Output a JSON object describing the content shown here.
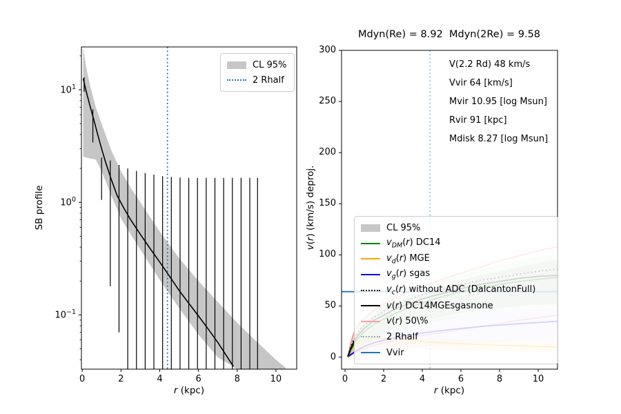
{
  "figure": {
    "background": "#ffffff"
  },
  "left_panel": {
    "ylabel": "SB profile",
    "xlabel": {
      "r": "r",
      "rest": " (kpc)"
    },
    "xticks": [
      0,
      2,
      4,
      6,
      8,
      10
    ],
    "ytick_labels": [
      {
        "base": "10",
        "exp": "1"
      },
      {
        "base": "10",
        "exp": "0"
      },
      {
        "base": "10",
        "exp": "−1"
      }
    ],
    "legend": {
      "entries": [
        {
          "kind": "patch",
          "color": "#c7c7c7",
          "label": "CL 95%",
          "rest": "CL 95%"
        },
        {
          "kind": "dotted",
          "color": "#1f77b4",
          "label": "2 Rhalf",
          "rest": "2 Rhalf"
        }
      ]
    }
  },
  "right_panel": {
    "title": "Mdyn(Re) = 8.92  Mdyn(2Re) = 9.58",
    "annotations": [
      "V(2.2 Rd) 48 km/s",
      "Vvir 64 [km/s]",
      "Mvir 10.95 [log Msun]",
      "Rvir 91 [kpc]",
      "Mdisk 8.27 [log Msun]"
    ],
    "ylabel": {
      "v": "v",
      "open": "(",
      "r": "r",
      "rest": ") (km/s) deproj."
    },
    "xlabel": {
      "r": "r",
      "rest": " (kpc)"
    },
    "xticks": [
      0,
      2,
      4,
      6,
      8,
      10
    ],
    "yticks": [
      0,
      50,
      100,
      150,
      200,
      250,
      300
    ],
    "legend": {
      "entries": [
        {
          "kind": "patch",
          "color": "#c7c7c7",
          "label": "CL 95%",
          "rest": "CL 95%"
        },
        {
          "kind": "line",
          "color": "#008000",
          "label": "v_DM(r) DC14",
          "v": "v",
          "sub": "DM",
          "r": "r",
          "rest": " DC14"
        },
        {
          "kind": "line",
          "color": "#ffa500",
          "label": "v_d(r) MGE",
          "v": "v",
          "sub": "d",
          "r": "r",
          "rest": " MGE"
        },
        {
          "kind": "line",
          "color": "#0000ff",
          "label": "v_g(r) sgas",
          "v": "v",
          "sub": "g",
          "r": "r",
          "rest": " sgas"
        },
        {
          "kind": "dotted",
          "color": "#000000",
          "label": "v_c(r) without ADC (DalcantonFull)",
          "v": "v",
          "sub": "c",
          "r": "r",
          "rest": " without ADC (DalcantonFull)"
        },
        {
          "kind": "line",
          "color": "#000000",
          "label": "v(r) DC14MGEsgasnone",
          "v": "v",
          "r": "r",
          "rest": " DC14MGEsgasnone"
        },
        {
          "kind": "line",
          "color": "#ff9f9f",
          "label": "v(r) 50\\%",
          "v": "v",
          "r": "r",
          "rest": " 50\\%"
        },
        {
          "kind": "dotted",
          "color": "#1f77b4",
          "alpha": 0.55,
          "label": "2 Rhalf",
          "rest": "2 Rhalf"
        },
        {
          "kind": "line",
          "color": "#1f77b4",
          "label": "Vvir",
          "rest": "Vvir"
        }
      ]
    }
  },
  "chart_data": [
    {
      "type": "line",
      "title": "",
      "xlabel": "r (kpc)",
      "ylabel": "SB profile",
      "yscale": "log",
      "xlim": [
        -0.04,
        11.07
      ],
      "ylim": [
        0.033,
        24
      ],
      "xticks": [
        0,
        2,
        4,
        6,
        8,
        10
      ],
      "yticks": [
        10,
        1,
        0.1
      ],
      "grid": false,
      "legend_position": "upper right",
      "series": [
        {
          "name": "SB profile median",
          "color": "#000000",
          "style": "solid",
          "x": [
            0.05,
            0.2,
            0.4,
            0.6,
            0.8,
            1.0,
            1.2,
            1.5,
            1.8,
            2.1,
            2.5,
            3.0,
            3.5,
            4.0,
            4.4,
            5.0,
            5.5,
            6.0,
            6.5,
            7.0,
            7.5,
            7.8
          ],
          "y": [
            12.6,
            9.8,
            7.2,
            5.4,
            4.0,
            3.0,
            2.3,
            1.6,
            1.15,
            0.92,
            0.7,
            0.52,
            0.39,
            0.295,
            0.235,
            0.165,
            0.127,
            0.098,
            0.075,
            0.057,
            0.042,
            0.035
          ]
        }
      ],
      "band": {
        "name": "CL 95%",
        "color": "#808080",
        "alpha": 0.45,
        "x": [
          0.05,
          0.2,
          0.4,
          0.7,
          1.0,
          1.5,
          2.0,
          2.5,
          3.0,
          4.0,
          5.0,
          6.0,
          7.0,
          8.0,
          9.0,
          10.0,
          10.5
        ],
        "upper": [
          24,
          16,
          11,
          7.0,
          5.0,
          2.9,
          1.9,
          1.35,
          1.0,
          0.55,
          0.32,
          0.2,
          0.13,
          0.085,
          0.058,
          0.04,
          0.034
        ],
        "lower": [
          2.55,
          2.5,
          2.45,
          2.4,
          1.9,
          1.15,
          0.72,
          0.52,
          0.38,
          0.205,
          0.115,
          0.067,
          0.042,
          0.033,
          0.033,
          0.033,
          0.033
        ]
      },
      "errorbars": {
        "color": "#000000",
        "r": [
          0.1,
          0.55,
          1.0,
          1.45,
          1.9,
          2.35,
          2.8,
          3.25,
          3.7,
          4.15,
          4.6,
          5.05,
          5.5,
          5.95,
          6.4,
          6.85,
          7.3,
          7.75,
          8.2,
          8.65,
          9.05
        ],
        "hi": [
          12.9,
          6.7,
          2.5,
          2.35,
          2.15,
          2.0,
          1.9,
          1.82,
          1.76,
          1.71,
          1.68,
          1.66,
          1.65,
          1.65,
          1.65,
          1.65,
          1.65,
          1.65,
          1.65,
          1.65,
          1.65
        ],
        "lo": [
          9.6,
          3.4,
          1.05,
          0.18,
          0.07,
          0.03,
          0.03,
          0.03,
          0.03,
          0.03,
          0.03,
          0.03,
          0.03,
          0.03,
          0.03,
          0.03,
          0.03,
          0.03,
          0.03,
          0.03,
          0.03
        ]
      },
      "vline": {
        "name": "2 Rhalf",
        "x": 4.4,
        "color": "#1f77b4",
        "style": "dotted",
        "alpha": 1.0
      }
    },
    {
      "type": "line",
      "title": "Mdyn(Re) = 8.92  Mdyn(2Re) = 9.58",
      "xlabel": "r (kpc)",
      "ylabel": "v(r) (km/s) deproj.",
      "xlim": [
        -0.18,
        11.0
      ],
      "ylim": [
        -11.8,
        300
      ],
      "xticks": [
        0,
        2,
        4,
        6,
        8,
        10
      ],
      "yticks": [
        0,
        50,
        100,
        150,
        200,
        250,
        300
      ],
      "grid": false,
      "legend_position": "lower right",
      "x": [
        0.15,
        0.3,
        0.5,
        0.75,
        1.0,
        1.5,
        2.0,
        2.5,
        3.0,
        4.0,
        5.0,
        6.0,
        7.0,
        8.0,
        9.0,
        10.0,
        11.0
      ],
      "series": [
        {
          "name": "v_DM(r) DC14",
          "color": "#008000",
          "style": "solid",
          "y": [
            0,
            7,
            14,
            20,
            25,
            32,
            37,
            42,
            46,
            53,
            59,
            64,
            68,
            71,
            74,
            76,
            78
          ]
        },
        {
          "name": "v_d(r) MGE",
          "color": "#ffa500",
          "style": "solid",
          "y": [
            2,
            7,
            12,
            15.5,
            17,
            18.5,
            18.3,
            17.5,
            16.6,
            15.2,
            14,
            13,
            12.2,
            11.5,
            11,
            10.4,
            10
          ]
        },
        {
          "name": "v_g(r) sgas",
          "color": "#0000ff",
          "style": "solid",
          "y": [
            0.5,
            2.5,
            5,
            8,
            10.5,
            14,
            16.5,
            18.5,
            20.5,
            23.5,
            26,
            28,
            29.8,
            31.3,
            32.6,
            33.8,
            35
          ]
        },
        {
          "name": "v_c(r) without ADC (DalcantonFull)",
          "color": "#000000",
          "style": "dotted",
          "y": [
            1,
            10,
            19,
            26,
            31,
            39,
            45,
            50,
            54,
            61,
            66,
            71,
            75,
            78,
            81,
            84,
            86
          ]
        },
        {
          "name": "v(r) DC14MGEsgasnone",
          "color": "#000000",
          "style": "solid",
          "y": [
            0.8,
            8.5,
            16.5,
            23,
            28,
            36,
            41,
            46,
            50,
            57,
            62,
            67,
            71,
            74,
            77,
            79,
            80
          ]
        },
        {
          "name": "v(r) 50\\% upper",
          "color": "#ff2222",
          "alpha": 0.5,
          "style": "solid",
          "y": [
            0,
            14,
            26,
            33,
            38,
            46,
            52,
            57,
            61,
            69,
            76,
            82,
            88,
            94,
            99,
            104,
            108
          ]
        },
        {
          "name": "v(r) 50\\% lower",
          "color": "#ff2222",
          "alpha": 0.5,
          "style": "solid",
          "y": [
            0,
            2,
            4.5,
            6.5,
            8.5,
            11.5,
            14,
            16,
            17.8,
            21,
            24,
            27,
            30,
            33,
            36,
            38.5,
            41
          ]
        }
      ],
      "bands": [
        {
          "name": "DC14 CL band",
          "color": "#008000",
          "alpha": 0.12,
          "upper": [
            0,
            13,
            24,
            31,
            37,
            45,
            51,
            56,
            60,
            68,
            75,
            81,
            86,
            91,
            95,
            98,
            101
          ],
          "lower": [
            0,
            3,
            6,
            9,
            12,
            17,
            21,
            24,
            27,
            32,
            36,
            40,
            43,
            45,
            47,
            48,
            49
          ]
        },
        {
          "name": "CL 95% gray band",
          "color": "#808080",
          "alpha": 0.25,
          "upper": [
            0,
            11,
            21,
            28,
            33,
            41,
            47,
            52,
            56,
            63,
            69,
            75,
            80,
            84,
            88,
            92,
            95
          ],
          "lower": [
            0,
            4,
            8,
            11,
            14,
            19,
            23,
            27,
            30,
            35,
            39,
            43,
            46,
            48,
            50,
            51,
            52
          ]
        },
        {
          "name": "sgas CL band",
          "color": "#5555ff",
          "alpha": 0.12,
          "upper": [
            0,
            4,
            8,
            11,
            14,
            19,
            23,
            26,
            29,
            34,
            38,
            41,
            43.5,
            45,
            46.5,
            47.5,
            48
          ],
          "lower": [
            0,
            1,
            2,
            3,
            4,
            5.5,
            7,
            8,
            9,
            10.5,
            12,
            13,
            14,
            14.8,
            15.5,
            16,
            16.5
          ]
        },
        {
          "name": "MGE CL band",
          "color": "#ffa500",
          "alpha": 0.18,
          "upper": [
            3,
            9,
            14,
            17.5,
            19,
            21,
            21,
            20.5,
            20,
            19,
            18.3,
            17.6,
            17,
            16.6,
            16.3,
            16,
            15.8
          ],
          "lower": [
            0.5,
            3,
            6,
            8,
            9.5,
            10.5,
            10.3,
            9.8,
            9.2,
            8,
            7,
            6.2,
            5.6,
            5,
            4.6,
            4.2,
            4
          ]
        }
      ],
      "hline": {
        "name": "Vvir",
        "y": 64,
        "color": "#1f77b4"
      },
      "vline": {
        "name": "2 Rhalf",
        "x": 4.4,
        "color": "#1f77b4",
        "style": "dotted",
        "alpha": 0.45
      }
    }
  ]
}
